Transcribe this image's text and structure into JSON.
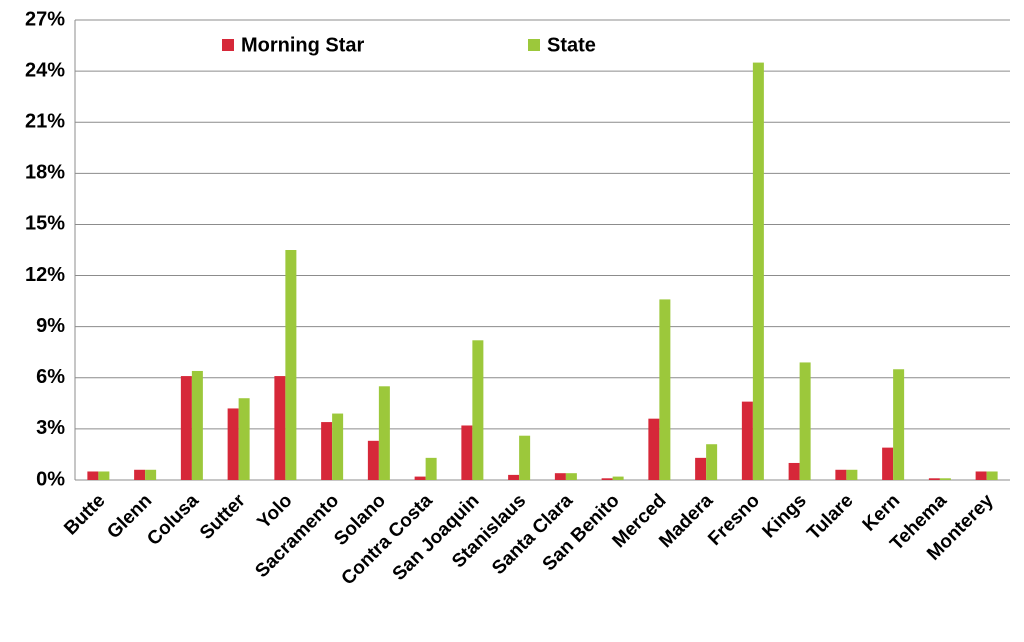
{
  "chart_data": {
    "type": "bar",
    "categories": [
      "Butte",
      "Glenn",
      "Colusa",
      "Sutter",
      "Yolo",
      "Sacramento",
      "Solano",
      "Contra Costa",
      "San Joaquin",
      "Stanislaus",
      "Santa Clara",
      "San Benito",
      "Merced",
      "Madera",
      "Fresno",
      "Kings",
      "Tulare",
      "Kern",
      "Tehema",
      "Monterey"
    ],
    "series": [
      {
        "name": "Morning Star",
        "color": "#d62839",
        "values": [
          0.5,
          0.6,
          6.1,
          4.2,
          6.1,
          3.4,
          2.3,
          0.2,
          3.2,
          0.3,
          0.4,
          0.1,
          3.6,
          1.3,
          4.6,
          1.0,
          0.6,
          1.9,
          0.1,
          0.5
        ]
      },
      {
        "name": "State",
        "color": "#9cc83b",
        "values": [
          0.5,
          0.6,
          6.4,
          4.8,
          13.5,
          3.9,
          5.5,
          1.3,
          8.2,
          2.6,
          0.4,
          0.2,
          10.6,
          2.1,
          24.5,
          6.9,
          0.6,
          6.5,
          0.1,
          0.5
        ]
      }
    ],
    "ylim": [
      0,
      27
    ],
    "yticks": [
      {
        "value": 0,
        "label": "0%"
      },
      {
        "value": 3,
        "label": "3%"
      },
      {
        "value": 6,
        "label": "6%"
      },
      {
        "value": 9,
        "label": "9%"
      },
      {
        "value": 12,
        "label": "12%"
      },
      {
        "value": 15,
        "label": "15%"
      },
      {
        "value": 18,
        "label": "18%"
      },
      {
        "value": 21,
        "label": "21%"
      },
      {
        "value": 24,
        "label": "24%"
      },
      {
        "value": 27,
        "label": "27%"
      }
    ],
    "grid": true,
    "legend": "top"
  }
}
